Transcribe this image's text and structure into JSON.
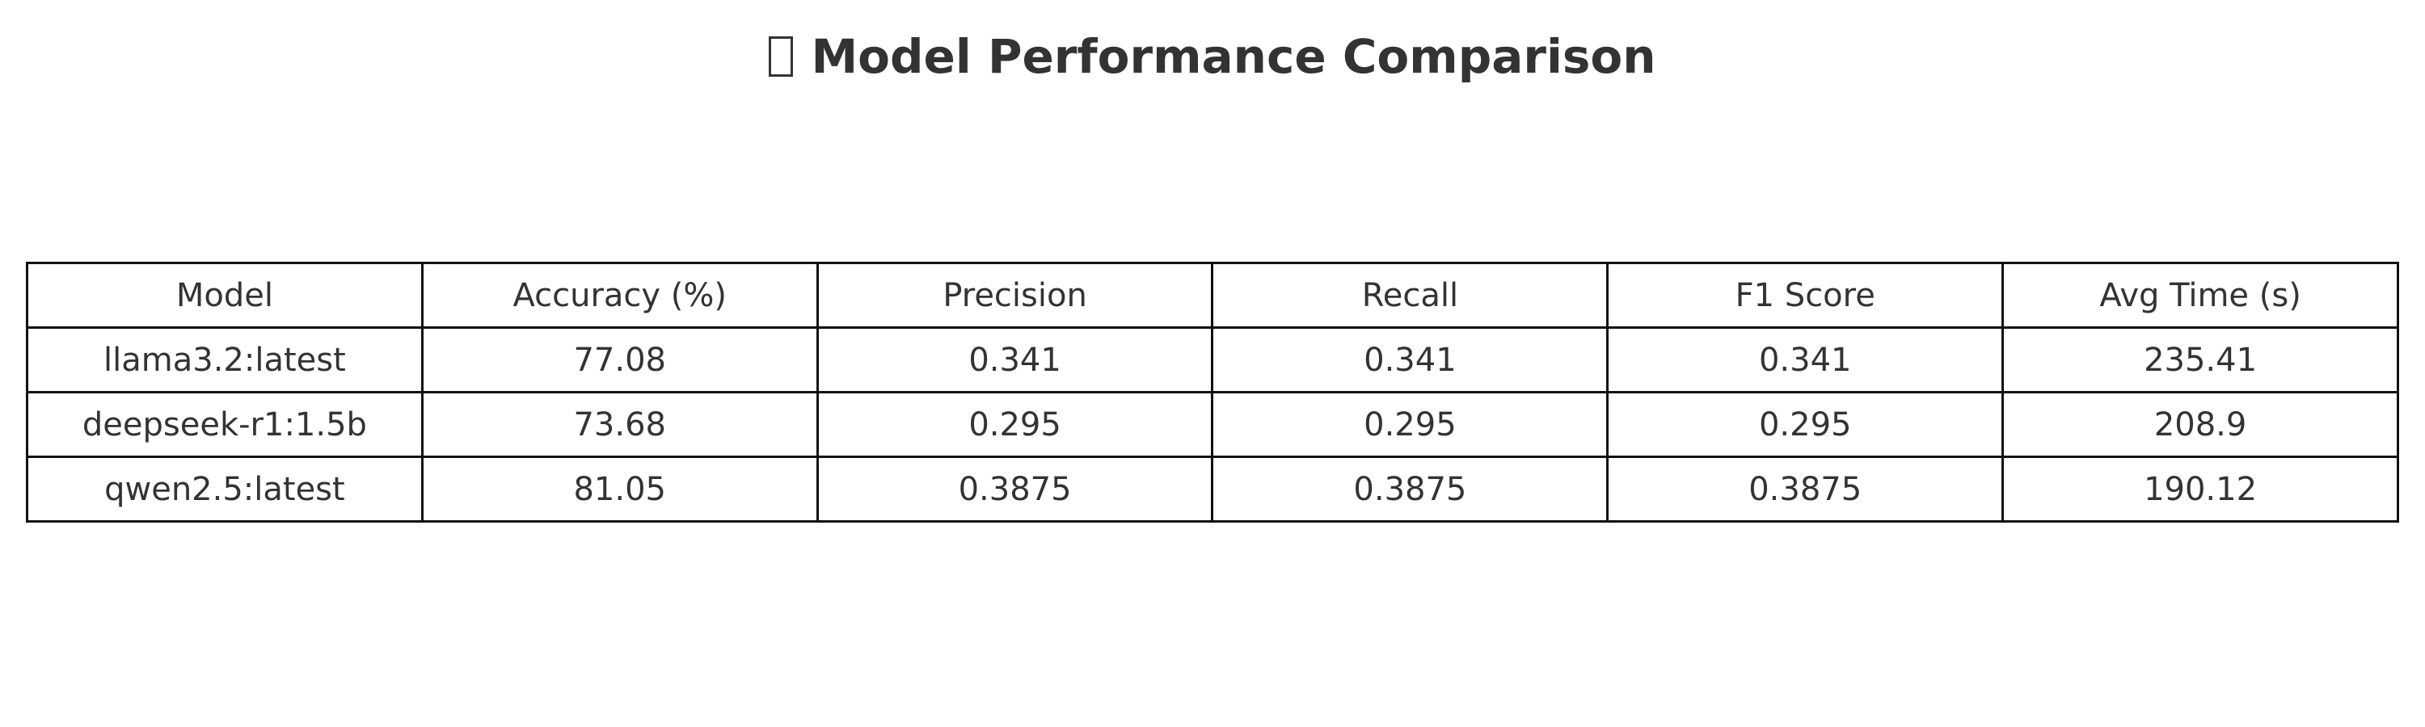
{
  "chart_data": {
    "type": "table",
    "title": "Model Performance Comparison",
    "title_icon": "emoji-glyph-missing-icon",
    "columns": [
      "Model",
      "Accuracy (%)",
      "Precision",
      "Recall",
      "F1 Score",
      "Avg Time (s)"
    ],
    "rows": [
      [
        "llama3.2:latest",
        "77.08",
        "0.341",
        "0.341",
        "0.341",
        "235.41"
      ],
      [
        "deepseek-r1:1.5b",
        "73.68",
        "0.295",
        "0.295",
        "0.295",
        "208.9"
      ],
      [
        "qwen2.5:latest",
        "81.05",
        "0.3875",
        "0.3875",
        "0.3875",
        "190.12"
      ]
    ]
  },
  "colors": {
    "text": "#333333",
    "border": "#111111",
    "background": "#ffffff"
  }
}
